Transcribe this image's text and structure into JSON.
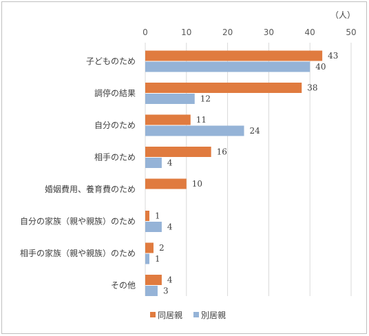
{
  "chart_data": {
    "type": "bar",
    "orientation": "horizontal",
    "unit_label": "（人）",
    "categories": [
      "子どものため",
      "調停の結果",
      "自分のため",
      "相手のため",
      "婚姻費用、養育費のため",
      "自分の家族（親や親族）のため",
      "相手の家族（親や親族）のため",
      "その他"
    ],
    "series": [
      {
        "name": "同居親",
        "color": "#e07b3f",
        "values": [
          43,
          38,
          11,
          16,
          10,
          1,
          2,
          4
        ]
      },
      {
        "name": "別居親",
        "color": "#95b3d7",
        "values": [
          40,
          12,
          24,
          4,
          null,
          4,
          1,
          3
        ]
      }
    ],
    "xlim": [
      0,
      50
    ],
    "xticks": [
      0,
      10,
      20,
      30,
      40,
      50
    ],
    "xaxis_position": "top",
    "grid": true,
    "legend_position": "bottom"
  }
}
